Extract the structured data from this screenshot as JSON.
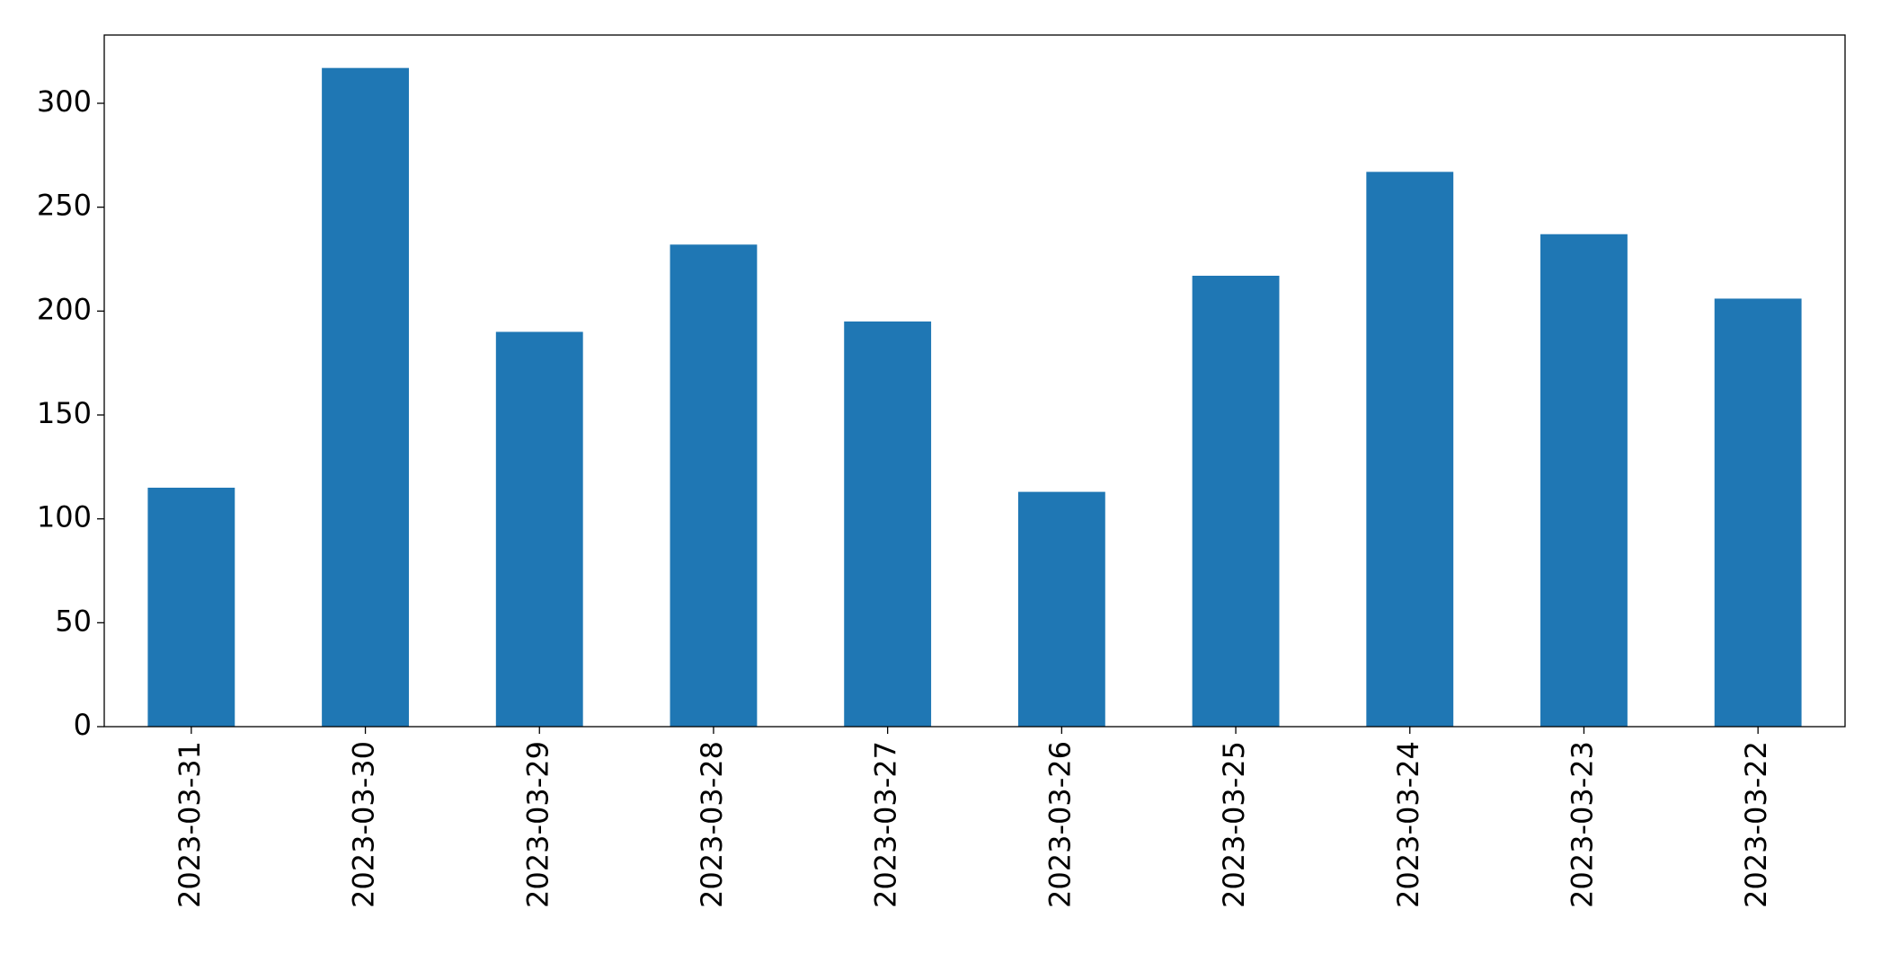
{
  "chart_data": {
    "type": "bar",
    "categories": [
      "2023-03-31",
      "2023-03-30",
      "2023-03-29",
      "2023-03-28",
      "2023-03-27",
      "2023-03-26",
      "2023-03-25",
      "2023-03-24",
      "2023-03-23",
      "2023-03-22"
    ],
    "values": [
      115,
      317,
      190,
      232,
      195,
      113,
      217,
      267,
      237,
      206
    ],
    "color": "#1f77b4",
    "ylim": [
      0,
      332.85
    ],
    "yticks": [
      0,
      50,
      100,
      150,
      200,
      250,
      300
    ],
    "grid": false
  }
}
